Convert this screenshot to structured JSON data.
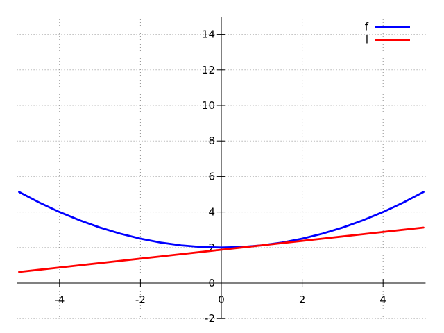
{
  "figure": {
    "background": "#ffffff",
    "axis_color": "#000000",
    "grid_color": "#8f8f8f",
    "text_color": "#000000"
  },
  "legend": {
    "position": "top-right",
    "entries": [
      {
        "label": "f",
        "color": "#0000ff"
      },
      {
        "label": "l",
        "color": "#ff0000"
      }
    ]
  },
  "chart_data": {
    "type": "line",
    "title": "",
    "xlabel": "",
    "ylabel": "",
    "xlim": [
      -5.05,
      5.05
    ],
    "ylim": [
      -2,
      15
    ],
    "xticks": [
      -4,
      -2,
      0,
      2,
      4
    ],
    "yticks": [
      -2,
      0,
      2,
      4,
      6,
      8,
      10,
      12,
      14
    ],
    "grid": true,
    "axes_style": "zero-axis",
    "legend_position": "top-right",
    "x": [
      -5,
      -4.5,
      -4,
      -3.5,
      -3,
      -2.5,
      -2,
      -1.5,
      -1,
      -0.5,
      0,
      0.5,
      1,
      1.5,
      2,
      2.5,
      3,
      3.5,
      4,
      4.5,
      5
    ],
    "series": [
      {
        "name": "f",
        "color": "#0000ff",
        "values": [
          5.125,
          4.531,
          4.0,
          3.531,
          3.125,
          2.781,
          2.5,
          2.281,
          2.125,
          2.031,
          2.0,
          2.031,
          2.125,
          2.281,
          2.5,
          2.781,
          3.125,
          3.531,
          4.0,
          4.531,
          5.125
        ]
      },
      {
        "name": "l",
        "color": "#ff0000",
        "values": [
          0.625,
          0.75,
          0.875,
          1.0,
          1.125,
          1.25,
          1.375,
          1.5,
          1.625,
          1.75,
          1.875,
          2.0,
          2.125,
          2.25,
          2.375,
          2.5,
          2.625,
          2.75,
          2.875,
          3.0,
          3.125
        ]
      }
    ]
  }
}
